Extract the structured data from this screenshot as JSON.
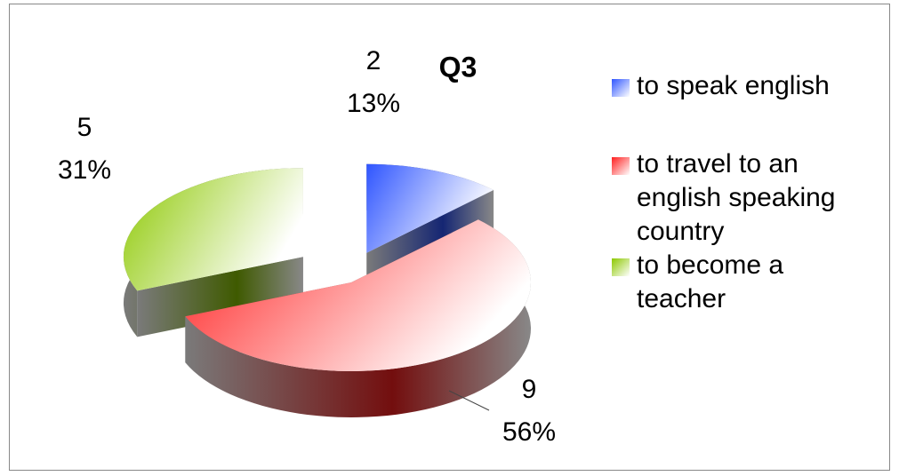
{
  "chart_data": {
    "type": "pie3d",
    "title": "Q3",
    "categories": [
      "to speak english",
      "to travel to an english speaking country",
      "to become a teacher"
    ],
    "values": [
      2,
      9,
      5
    ],
    "percents": [
      13,
      56,
      31
    ],
    "percent_labels": [
      "13%",
      "56%",
      "31%"
    ],
    "colors": [
      "#2f55ff",
      "#ff1e1e",
      "#8cc800"
    ],
    "legend": "right"
  }
}
